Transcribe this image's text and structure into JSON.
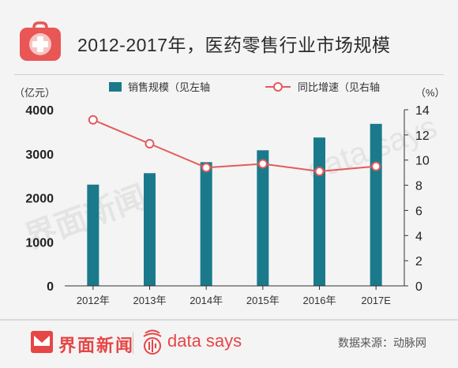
{
  "header": {
    "title": "2012-2017年，医药零售行业市场规模"
  },
  "chart_data": {
    "type": "bar+line",
    "categories": [
      "2012年",
      "2013年",
      "2014年",
      "2015年",
      "2016年",
      "2017E"
    ],
    "series": [
      {
        "name": "销售规模（见左轴",
        "type": "bar",
        "axis": "left",
        "color": "#1a7a8c",
        "values": [
          2300,
          2560,
          2810,
          3080,
          3370,
          3680
        ]
      },
      {
        "name": "同比增速（见右轴",
        "type": "line",
        "axis": "right",
        "color": "#e55a5a",
        "values": [
          13.2,
          11.3,
          9.4,
          9.7,
          9.1,
          9.5
        ]
      }
    ],
    "y_left": {
      "unit": "（亿元）",
      "ylim": [
        0,
        4000
      ],
      "ticks": [
        "0",
        "1000",
        "2000",
        "3000",
        "4000"
      ],
      "tick_values": [
        0,
        1000,
        2000,
        3000,
        4000
      ]
    },
    "y_right": {
      "unit": "（%）",
      "ylim": [
        0,
        14
      ],
      "ticks": [
        "0",
        "2",
        "4",
        "6",
        "8",
        "10",
        "12",
        "14"
      ],
      "tick_values": [
        0,
        2,
        4,
        6,
        8,
        10,
        12,
        14
      ]
    },
    "grid": false,
    "legend_position": "top"
  },
  "footer": {
    "brand": "界面新闻",
    "datasays": "data says",
    "source": "数据来源：动脉网"
  },
  "watermarks": {
    "left": "界面新闻",
    "right": "data says"
  },
  "colors": {
    "accent": "#e64646",
    "bar": "#1a7a8c",
    "line": "#e55a5a"
  }
}
